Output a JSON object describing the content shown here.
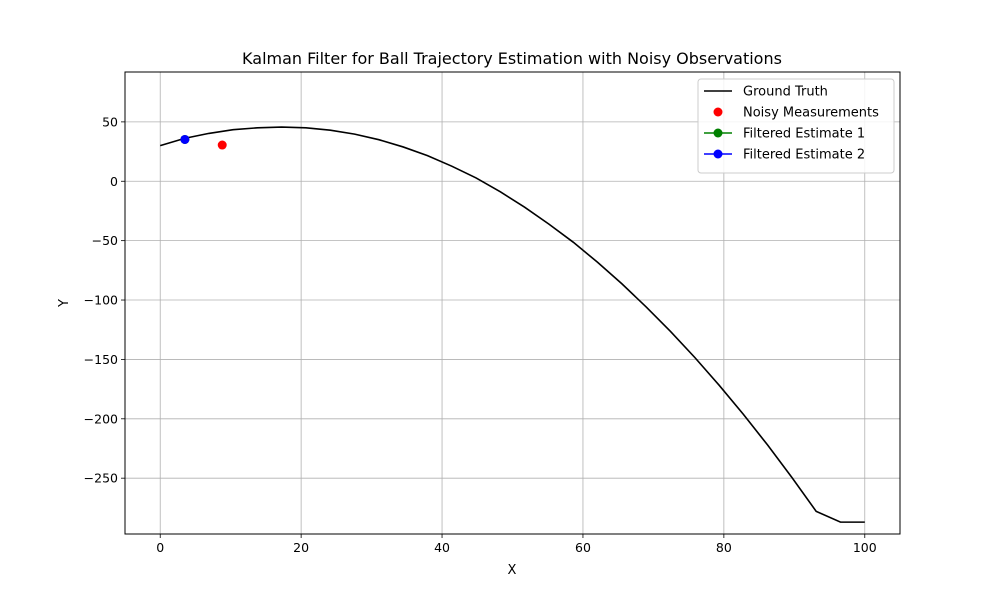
{
  "chart_data": {
    "type": "line",
    "title": "Kalman Filter for Ball Trajectory Estimation with Noisy Observations",
    "xlabel": "X",
    "ylabel": "Y",
    "xlim": [
      -5,
      105
    ],
    "ylim": [
      -297,
      92
    ],
    "xticks": [
      0,
      20,
      40,
      60,
      80,
      100
    ],
    "yticks": [
      50,
      0,
      -50,
      -100,
      -150,
      -200,
      -250
    ],
    "grid": true,
    "legend_position": "top-right",
    "series": [
      {
        "name": "Ground Truth",
        "style": "line",
        "color": "#000000",
        "x": [
          0,
          3.45,
          6.9,
          10.34,
          13.79,
          17.24,
          20.69,
          24.14,
          27.59,
          31.03,
          34.48,
          37.93,
          41.38,
          44.83,
          48.28,
          51.72,
          55.17,
          58.62,
          62.07,
          65.52,
          68.97,
          72.41,
          75.86,
          79.31,
          82.76,
          86.21,
          89.66,
          93.1,
          96.55,
          100
        ],
        "y": [
          30,
          36.1,
          40.3,
          43.4,
          45.0,
          45.6,
          45.0,
          43.0,
          39.7,
          35.0,
          28.9,
          21.6,
          12.7,
          2.8,
          -8.9,
          -21.8,
          -36.1,
          -51.3,
          -68.2,
          -86.3,
          -105.8,
          -126.3,
          -148.3,
          -171.6,
          -196.2,
          -222.1,
          -249.4,
          -277.9,
          -287,
          -287
        ]
      },
      {
        "name": "Noisy Measurements",
        "style": "scatter",
        "color": "#ff0000",
        "x": [
          8.8
        ],
        "y": [
          30.5
        ]
      },
      {
        "name": "Filtered Estimate 1",
        "style": "line-marker",
        "color": "#008000",
        "x": [
          3.5
        ],
        "y": [
          35.2
        ]
      },
      {
        "name": "Filtered Estimate 2",
        "style": "line-marker",
        "color": "#0000ff",
        "x": [
          3.5
        ],
        "y": [
          35.2
        ]
      }
    ]
  }
}
